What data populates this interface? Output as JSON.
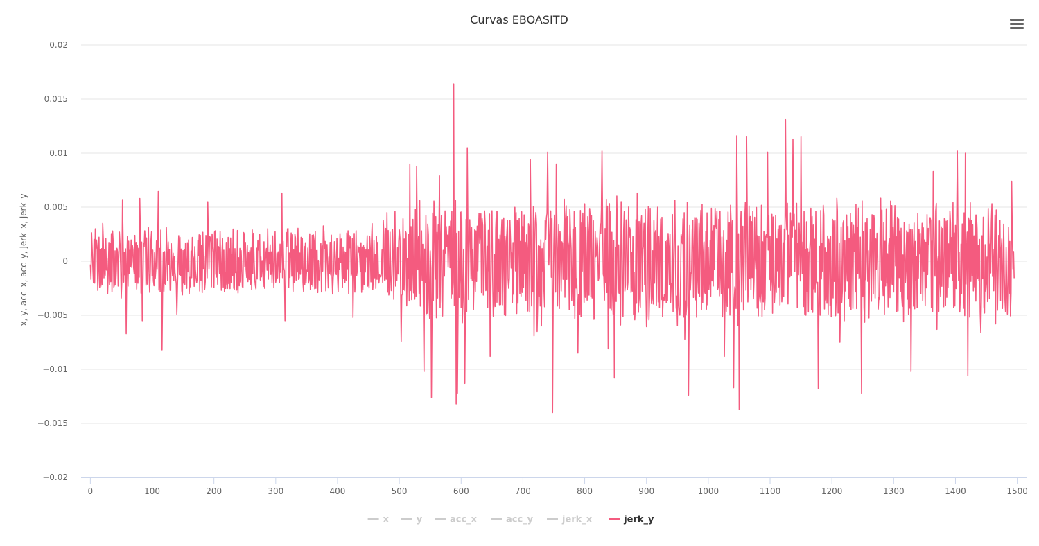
{
  "chart_data": {
    "type": "line",
    "title": "Curvas EBOASITD",
    "xlabel": "",
    "ylabel": "x, y, acc_x, acc_y, jerk_x, jerk_y",
    "xlim": [
      -15,
      1515
    ],
    "ylim": [
      -0.02,
      0.02
    ],
    "xticks": [
      "0",
      "100",
      "200",
      "300",
      "400",
      "500",
      "600",
      "700",
      "800",
      "900",
      "1000",
      "1100",
      "1200",
      "1300",
      "1400",
      "1500"
    ],
    "yticks": [
      "0.02",
      "0.015",
      "0.01",
      "0.005",
      "0",
      "−0.005",
      "−0.01",
      "−0.015",
      "−0.02"
    ],
    "grid": true,
    "legend_position": "bottom-center",
    "series": [
      {
        "name": "x",
        "visible": false,
        "values": []
      },
      {
        "name": "y",
        "visible": false,
        "values": []
      },
      {
        "name": "acc_x",
        "visible": false,
        "values": []
      },
      {
        "name": "acc_y",
        "visible": false,
        "values": []
      },
      {
        "name": "jerk_x",
        "visible": false,
        "values": []
      },
      {
        "name": "jerk_y",
        "visible": true,
        "color": "#f45b7f",
        "x_start": 0,
        "x_step": 1,
        "count": 1496,
        "keypoints": [
          [
            0,
            -0.0003
          ],
          [
            3,
            0.0011
          ],
          [
            5,
            -0.002
          ],
          [
            8,
            0.003
          ],
          [
            12,
            -0.0027
          ],
          [
            20,
            0.0035
          ],
          [
            28,
            -0.003
          ],
          [
            36,
            0.0028
          ],
          [
            50,
            -0.0034
          ],
          [
            52,
            0.0057
          ],
          [
            58,
            -0.0067
          ],
          [
            80,
            0.0058
          ],
          [
            84,
            -0.0055
          ],
          [
            110,
            0.0065
          ],
          [
            116,
            -0.0082
          ],
          [
            140,
            -0.0049
          ],
          [
            190,
            0.0055
          ],
          [
            310,
            0.0063
          ],
          [
            315,
            -0.0055
          ],
          [
            425,
            -0.0052
          ],
          [
            480,
            0.0045
          ],
          [
            493,
            0.0046
          ],
          [
            503,
            -0.0074
          ],
          [
            517,
            0.009
          ],
          [
            528,
            0.0088
          ],
          [
            540,
            -0.0102
          ],
          [
            552,
            -0.0126
          ],
          [
            565,
            0.0079
          ],
          [
            588,
            0.0164
          ],
          [
            592,
            -0.0132
          ],
          [
            594,
            -0.0122
          ],
          [
            606,
            -0.0113
          ],
          [
            610,
            0.0105
          ],
          [
            647,
            -0.0088
          ],
          [
            712,
            0.0094
          ],
          [
            718,
            -0.0069
          ],
          [
            723,
            -0.0065
          ],
          [
            740,
            0.0101
          ],
          [
            748,
            -0.014
          ],
          [
            754,
            0.009
          ],
          [
            789,
            -0.0085
          ],
          [
            828,
            0.0102
          ],
          [
            838,
            -0.0081
          ],
          [
            848,
            -0.0108
          ],
          [
            858,
            -0.0059
          ],
          [
            885,
            0.0063
          ],
          [
            962,
            -0.0072
          ],
          [
            968,
            -0.0124
          ],
          [
            1026,
            -0.0088
          ],
          [
            1041,
            -0.0117
          ],
          [
            1046,
            0.0116
          ],
          [
            1050,
            -0.0137
          ],
          [
            1062,
            0.0115
          ],
          [
            1096,
            0.0101
          ],
          [
            1125,
            0.0131
          ],
          [
            1137,
            0.0113
          ],
          [
            1150,
            0.0115
          ],
          [
            1178,
            -0.0118
          ],
          [
            1213,
            -0.0075
          ],
          [
            1248,
            -0.0122
          ],
          [
            1328,
            -0.0102
          ],
          [
            1364,
            0.0083
          ],
          [
            1370,
            -0.0063
          ],
          [
            1403,
            0.0102
          ],
          [
            1416,
            0.01
          ],
          [
            1420,
            -0.0106
          ],
          [
            1441,
            -0.0066
          ],
          [
            1465,
            -0.0058
          ],
          [
            1491,
            0.0074
          ],
          [
            1496,
            -0.0044
          ]
        ],
        "amplitude_envelope": [
          [
            0,
            0.0025
          ],
          [
            120,
            0.003
          ],
          [
            300,
            0.003
          ],
          [
            450,
            0.003
          ],
          [
            500,
            0.004
          ],
          [
            520,
            0.0052
          ],
          [
            700,
            0.0052
          ],
          [
            1000,
            0.0055
          ],
          [
            1300,
            0.0052
          ],
          [
            1496,
            0.0048
          ]
        ]
      }
    ]
  },
  "legend": {
    "items": [
      {
        "label": "x",
        "color": "#cccccc",
        "active": false
      },
      {
        "label": "y",
        "color": "#cccccc",
        "active": false
      },
      {
        "label": "acc_x",
        "color": "#cccccc",
        "active": false
      },
      {
        "label": "acc_y",
        "color": "#cccccc",
        "active": false
      },
      {
        "label": "jerk_x",
        "color": "#cccccc",
        "active": false
      },
      {
        "label": "jerk_y",
        "color": "#f45b7f",
        "active": true
      }
    ]
  },
  "menu": {
    "icon": "hamburger-menu-icon"
  }
}
